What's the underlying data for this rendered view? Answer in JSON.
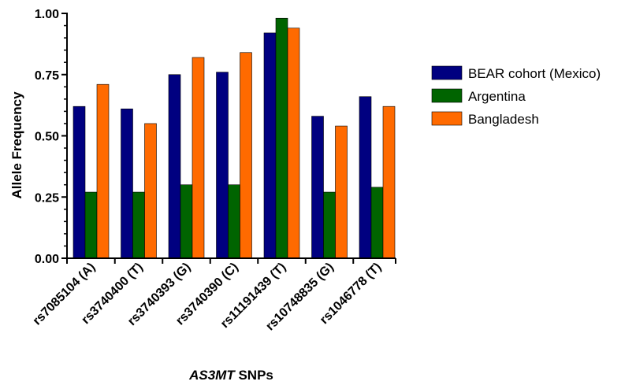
{
  "chart_data": {
    "type": "bar",
    "categories": [
      "rs7085104 (A)",
      "rs3740400 (T)",
      "rs3740393 (G)",
      "rs3740390 (C)",
      "rs11191439 (T)",
      "rs10748835 (G)",
      "rs1046778 (T)"
    ],
    "series": [
      {
        "name": "BEAR cohort (Mexico)",
        "color": "#000080",
        "values": [
          0.62,
          0.61,
          0.75,
          0.76,
          0.92,
          0.58,
          0.66
        ]
      },
      {
        "name": "Argentina",
        "color": "#006400",
        "values": [
          0.27,
          0.27,
          0.3,
          0.3,
          0.98,
          0.27,
          0.29
        ]
      },
      {
        "name": "Bangladesh",
        "color": "#FF6A00",
        "values": [
          0.71,
          0.55,
          0.82,
          0.84,
          0.94,
          0.54,
          0.62
        ]
      }
    ],
    "ylabel": "Allele Frequency",
    "xlabel_italic": "AS3MT",
    "xlabel_rest": " SNPs",
    "ylim": [
      0,
      1
    ],
    "yticks": [
      "0.00",
      "0.25",
      "0.50",
      "0.75",
      "1.00"
    ],
    "ytick_values": [
      0,
      0.25,
      0.5,
      0.75,
      1.0
    ],
    "grid": false,
    "legend_position": "right"
  }
}
